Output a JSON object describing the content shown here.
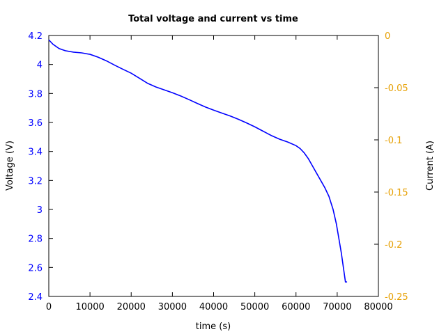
{
  "chart_data": {
    "type": "line",
    "title": "Total voltage and current vs time",
    "xlabel": "time (s)",
    "ylabel": "Voltage (V)",
    "y2label": "Current (A)",
    "xlim": [
      0,
      80000
    ],
    "ylim": [
      2.4,
      4.2
    ],
    "y2lim": [
      -0.25,
      0
    ],
    "grid": false,
    "x_ticks": [
      "0",
      "10000",
      "20000",
      "30000",
      "40000",
      "50000",
      "60000",
      "70000",
      "80000"
    ],
    "y_ticks": [
      "2.4",
      "2.6",
      "2.8",
      "3",
      "3.2",
      "3.4",
      "3.6",
      "3.8",
      "4",
      "4.2"
    ],
    "y2_ticks": [
      "-0.25",
      "-0.2",
      "-0.15",
      "-0.1",
      "-0.05",
      "0"
    ],
    "colors": {
      "voltage": "#0000ff",
      "current_axis": "#e69f00",
      "axes": "#000000"
    },
    "series": [
      {
        "axis": "left",
        "x": [
          0,
          1000,
          2500,
          4000,
          6000,
          8000,
          10000,
          12000,
          14000,
          16000,
          18000,
          20000,
          22000,
          24000,
          26000,
          28000,
          30000,
          32000,
          34000,
          36000,
          38000,
          40000,
          42000,
          44000,
          46000,
          48000,
          50000,
          52000,
          54000,
          56000,
          58000,
          60000,
          61000,
          62000,
          63000,
          64000,
          65000,
          66000,
          67000,
          68000,
          69000,
          69800,
          70400,
          71000,
          71500,
          72000,
          72400
        ],
        "y": [
          4.17,
          4.14,
          4.11,
          4.095,
          4.085,
          4.08,
          4.07,
          4.05,
          4.025,
          3.995,
          3.967,
          3.94,
          3.905,
          3.87,
          3.845,
          3.825,
          3.805,
          3.783,
          3.758,
          3.732,
          3.707,
          3.685,
          3.665,
          3.645,
          3.622,
          3.597,
          3.57,
          3.54,
          3.51,
          3.485,
          3.465,
          3.44,
          3.42,
          3.39,
          3.35,
          3.3,
          3.25,
          3.2,
          3.15,
          3.09,
          3.0,
          2.9,
          2.8,
          2.7,
          2.6,
          2.5,
          2.5
        ]
      }
    ]
  }
}
